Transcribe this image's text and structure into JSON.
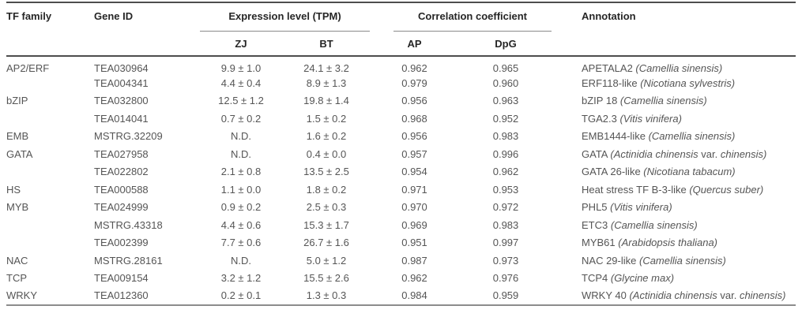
{
  "table": {
    "header": {
      "tf_family": "TF family",
      "gene_id": "Gene ID",
      "expression_group": "Expression level (TPM)",
      "correlation_group": "Correlation coefficient",
      "zj": "ZJ",
      "bt": "BT",
      "ap": "AP",
      "dpg": "DpG",
      "annotation": "Annotation"
    },
    "rows": [
      {
        "tf_family": "AP2/ERF",
        "gene_id": "TEA030964",
        "zj": "9.9 ± 1.0",
        "bt": "24.1 ± 3.2",
        "ap": "0.962",
        "dpg": "0.965",
        "annotation": [
          {
            "t": "APETALA2 "
          },
          {
            "t": "(Camellia sinensis)",
            "i": true
          }
        ]
      },
      {
        "tf_family": "",
        "gene_id": "TEA004341",
        "zj": "4.4 ± 0.4",
        "bt": "8.9 ± 1.3",
        "ap": "0.979",
        "dpg": "0.960",
        "annotation": [
          {
            "t": "ERF118-like "
          },
          {
            "t": "(Nicotiana sylvestris)",
            "i": true
          }
        ]
      },
      {
        "tf_family": "bZIP",
        "gene_id": "TEA032800",
        "zj": "12.5 ± 1.2",
        "bt": "19.8 ± 1.4",
        "ap": "0.956",
        "dpg": "0.963",
        "annotation": [
          {
            "t": "bZIP 18 "
          },
          {
            "t": "(Camellia sinensis)",
            "i": true
          }
        ]
      },
      {
        "tf_family": "",
        "gene_id": "TEA014041",
        "zj": "0.7 ± 0.2",
        "bt": "1.5 ± 0.2",
        "ap": "0.968",
        "dpg": "0.952",
        "annotation": [
          {
            "t": "TGA2.3 "
          },
          {
            "t": "(Vitis vinifera)",
            "i": true
          }
        ]
      },
      {
        "tf_family": "EMB",
        "gene_id": "MSTRG.32209",
        "zj": "N.D.",
        "bt": "1.6 ± 0.2",
        "ap": "0.956",
        "dpg": "0.983",
        "annotation": [
          {
            "t": "EMB1444-like "
          },
          {
            "t": "(Camellia sinensis)",
            "i": true
          }
        ]
      },
      {
        "tf_family": "GATA",
        "gene_id": "TEA027958",
        "zj": "N.D.",
        "bt": "0.4 ± 0.0",
        "ap": "0.957",
        "dpg": "0.996",
        "annotation": [
          {
            "t": "GATA "
          },
          {
            "t": "(Actinidia chinensis",
            "i": true
          },
          {
            "t": " var. "
          },
          {
            "t": "chinensis)",
            "i": true
          }
        ]
      },
      {
        "tf_family": "",
        "gene_id": "TEA022802",
        "zj": "2.1 ± 0.8",
        "bt": "13.5 ± 2.5",
        "ap": "0.954",
        "dpg": "0.962",
        "annotation": [
          {
            "t": "GATA 26-like "
          },
          {
            "t": "(Nicotiana tabacum)",
            "i": true
          }
        ]
      },
      {
        "tf_family": "HS",
        "gene_id": "TEA000588",
        "zj": "1.1 ± 0.0",
        "bt": "1.8 ± 0.2",
        "ap": "0.971",
        "dpg": "0.953",
        "annotation": [
          {
            "t": "Heat stress TF B-3-like "
          },
          {
            "t": "(Quercus suber)",
            "i": true
          }
        ]
      },
      {
        "tf_family": "MYB",
        "gene_id": "TEA024999",
        "zj": "0.9 ± 0.2",
        "bt": "2.5 ± 0.3",
        "ap": "0.970",
        "dpg": "0.972",
        "annotation": [
          {
            "t": "PHL5 "
          },
          {
            "t": "(Vitis vinifera)",
            "i": true
          }
        ]
      },
      {
        "tf_family": "",
        "gene_id": "MSTRG.43318",
        "zj": "4.4 ± 0.6",
        "bt": "15.3 ± 1.7",
        "ap": "0.969",
        "dpg": "0.983",
        "annotation": [
          {
            "t": "ETC3 "
          },
          {
            "t": "(Camellia sinensis)",
            "i": true
          }
        ]
      },
      {
        "tf_family": "",
        "gene_id": "TEA002399",
        "zj": "7.7 ± 0.6",
        "bt": "26.7 ± 1.6",
        "ap": "0.951",
        "dpg": "0.997",
        "annotation": [
          {
            "t": "MYB61 "
          },
          {
            "t": "(Arabidopsis thaliana)",
            "i": true
          }
        ]
      },
      {
        "tf_family": "NAC",
        "gene_id": "MSTRG.28161",
        "zj": "N.D.",
        "bt": "5.0 ± 1.2",
        "ap": "0.987",
        "dpg": "0.973",
        "annotation": [
          {
            "t": "NAC 29-like "
          },
          {
            "t": "(Camellia sinensis)",
            "i": true
          }
        ]
      },
      {
        "tf_family": "TCP",
        "gene_id": "TEA009154",
        "zj": "3.2 ± 1.2",
        "bt": "15.5 ± 2.6",
        "ap": "0.962",
        "dpg": "0.976",
        "annotation": [
          {
            "t": "TCP4 "
          },
          {
            "t": "(Glycine max)",
            "i": true
          }
        ]
      },
      {
        "tf_family": "WRKY",
        "gene_id": "TEA012360",
        "zj": "0.2 ± 0.1",
        "bt": "1.3 ± 0.3",
        "ap": "0.984",
        "dpg": "0.959",
        "annotation": [
          {
            "t": "WRKY 40 "
          },
          {
            "t": "(Actinidia chinensis",
            "i": true
          },
          {
            "t": " var. "
          },
          {
            "t": "chinensis)",
            "i": true
          }
        ]
      }
    ]
  },
  "colors": {
    "rule_top": "#4d4d4d",
    "rule_header_bottom": "#4d4d4d",
    "rule_bottom": "#8c8c8c",
    "rule_group": "#8a8a8a",
    "header_text": "#262626",
    "body_text": "#555555"
  }
}
